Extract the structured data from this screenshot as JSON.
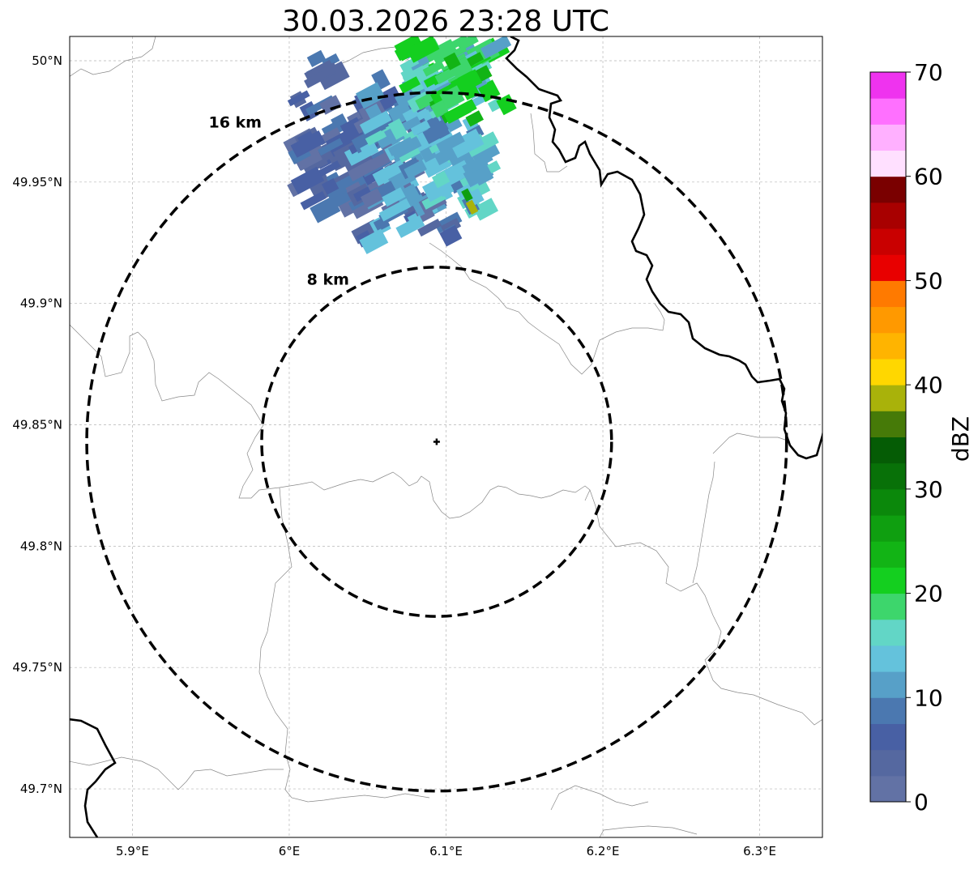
{
  "title": "30.03.2026 23:28 UTC",
  "map": {
    "lon_ticks": [
      {
        "value": 5.9,
        "label": "5.9°E"
      },
      {
        "value": 6.0,
        "label": "6°E"
      },
      {
        "value": 6.1,
        "label": "6.1°E"
      },
      {
        "value": 6.2,
        "label": "6.2°E"
      },
      {
        "value": 6.3,
        "label": "6.3°E"
      }
    ],
    "lat_ticks": [
      {
        "value": 50.0,
        "label": "50°N"
      },
      {
        "value": 49.95,
        "label": "49.95°N"
      },
      {
        "value": 49.9,
        "label": "49.9°N"
      },
      {
        "value": 49.85,
        "label": "49.85°N"
      },
      {
        "value": 49.8,
        "label": "49.8°N"
      },
      {
        "value": 49.75,
        "label": "49.75°N"
      },
      {
        "value": 49.7,
        "label": "49.7°N"
      }
    ],
    "lon_range": [
      5.86,
      6.34
    ],
    "lat_range": [
      49.68,
      50.01
    ],
    "grid": true,
    "radar_site": {
      "lon": 6.094,
      "lat": 49.843
    },
    "range_rings": [
      {
        "radius_km": 8,
        "label": "8 km"
      },
      {
        "radius_km": 16,
        "label": "16 km"
      }
    ]
  },
  "colorbar": {
    "label": "dBZ",
    "min": 0,
    "max": 70,
    "tick_labels": [
      "0",
      "10",
      "20",
      "30",
      "40",
      "50",
      "60",
      "70"
    ],
    "colors": [
      "#6272a5",
      "#5568a0",
      "#4860a4",
      "#4b78b0",
      "#57a0c8",
      "#64c2dc",
      "#62d6c6",
      "#3dd66c",
      "#14cf1f",
      "#12b415",
      "#0f9f10",
      "#0b880b",
      "#087108",
      "#055c05",
      "#467a08",
      "#a9b20a",
      "#ffd700",
      "#ffb400",
      "#ff9900",
      "#ff7a00",
      "#e80000",
      "#c90000",
      "#a80000",
      "#7a0000",
      "#ffe0ff",
      "#ffb0ff",
      "#ff70ff",
      "#ef33ef"
    ]
  }
}
